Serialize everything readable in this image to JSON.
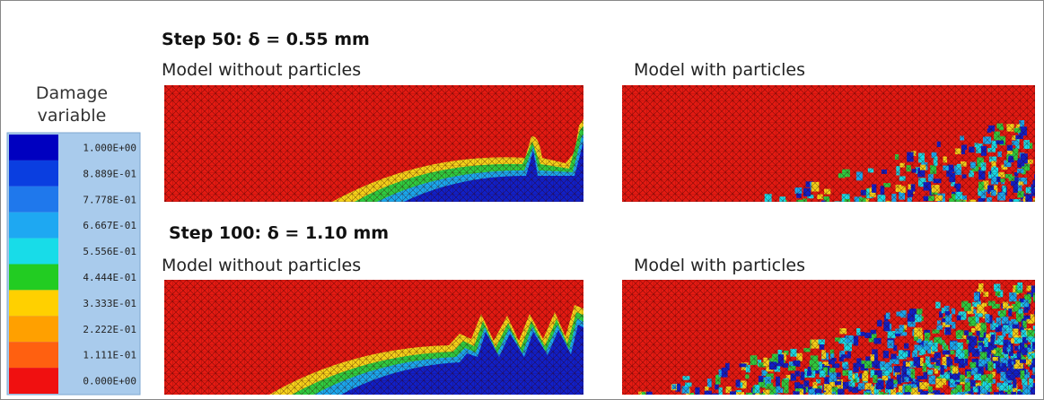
{
  "legend": {
    "title": [
      "Damage",
      "variable"
    ],
    "labels": [
      "1.000E+00",
      "8.889E-01",
      "7.778E-01",
      "6.667E-01",
      "5.556E-01",
      "4.444E-01",
      "3.333E-01",
      "2.222E-01",
      "1.111E-01",
      "0.000E+00"
    ]
  },
  "panels": [
    {
      "heading": "Step 50: δ = 0.55 mm",
      "left_label": "Model without particles",
      "right_label": "Model with particles"
    },
    {
      "heading": "Step 100: δ = 1.10 mm",
      "left_label": "Model without particles",
      "right_label": "Model with particles"
    }
  ]
}
